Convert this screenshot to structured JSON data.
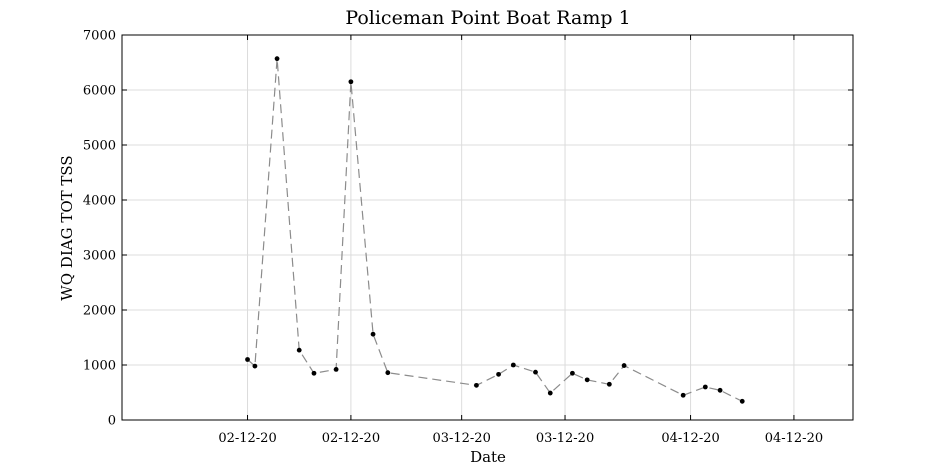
{
  "chart_data": {
    "type": "line",
    "title": "Policeman Point Boat Ramp 1",
    "xlabel": "Date",
    "ylabel": "WQ DIAG TOT TSS",
    "ylim": [
      0,
      7000
    ],
    "yticks": [
      0,
      1000,
      2000,
      3000,
      4000,
      5000,
      6000,
      7000
    ],
    "xlim": [
      "2020-01-15",
      "2020-04-23"
    ],
    "xticks": [
      {
        "date": "2020-02-01",
        "label": "02-12-20"
      },
      {
        "date": "2020-02-15",
        "label": "02-12-20"
      },
      {
        "date": "2020-03-01",
        "label": "03-12-20"
      },
      {
        "date": "2020-03-15",
        "label": "03-12-20"
      },
      {
        "date": "2020-04-01",
        "label": "04-12-20"
      },
      {
        "date": "2020-04-15",
        "label": "04-12-20"
      }
    ],
    "grid": true,
    "series": [
      {
        "style": "dashed gray line with black point markers",
        "x": [
          "2020-02-01",
          "2020-02-02",
          "2020-02-05",
          "2020-02-08",
          "2020-02-10",
          "2020-02-13",
          "2020-02-15",
          "2020-02-18",
          "2020-02-20",
          "2020-03-03",
          "2020-03-06",
          "2020-03-08",
          "2020-03-11",
          "2020-03-13",
          "2020-03-16",
          "2020-03-18",
          "2020-03-21",
          "2020-03-23",
          "2020-03-31",
          "2020-04-03",
          "2020-04-05",
          "2020-04-08"
        ],
        "y": [
          1100,
          980,
          6570,
          1270,
          850,
          920,
          6150,
          1560,
          860,
          630,
          830,
          1000,
          870,
          490,
          850,
          730,
          650,
          990,
          450,
          600,
          540,
          340
        ]
      }
    ]
  }
}
